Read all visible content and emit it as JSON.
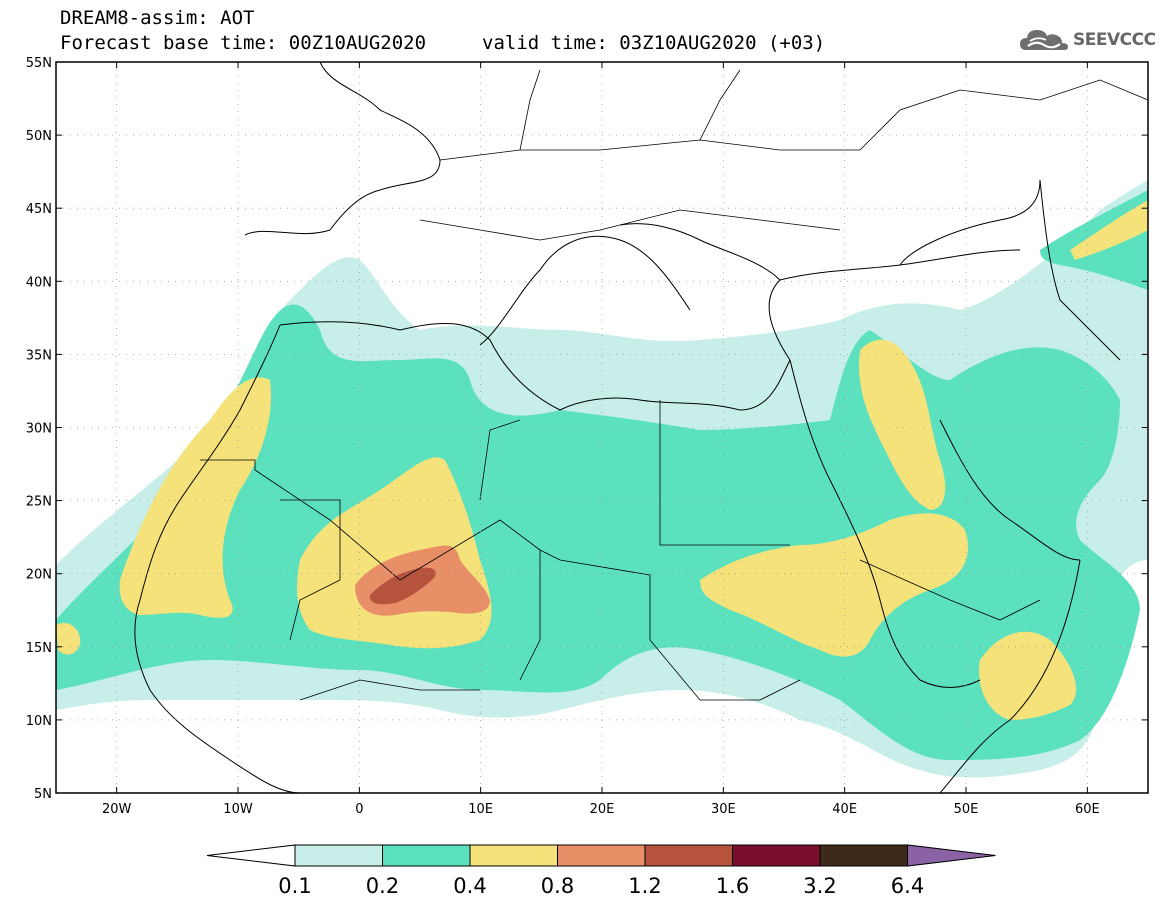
{
  "header": {
    "line1": "DREAM8-assim: AOT",
    "line2": "Forecast base time: 00Z10AUG2020",
    "valid": "valid time: 03Z10AUG2020 (+03)",
    "logo_text": "SEEVCCC",
    "logo_icon": "cloud-icon"
  },
  "map": {
    "projection": "lat-lon",
    "lon_range": [
      -25,
      65
    ],
    "lat_range": [
      5,
      55
    ],
    "lat_labels": [
      "55N",
      "50N",
      "45N",
      "40N",
      "35N",
      "30N",
      "25N",
      "20N",
      "15N",
      "10N",
      "5N"
    ],
    "lat_values": [
      55,
      50,
      45,
      40,
      35,
      30,
      25,
      20,
      15,
      10,
      5
    ],
    "lon_labels": [
      "20W",
      "10W",
      "0",
      "10E",
      "20E",
      "30E",
      "40E",
      "50E",
      "60E"
    ],
    "lon_values": [
      -20,
      -10,
      0,
      10,
      20,
      30,
      40,
      50,
      60
    ],
    "grid": "dotted",
    "ocean_color": "#ffffff",
    "boundary_color": "#000000"
  },
  "colorbar": {
    "labels": [
      "0.1",
      "0.2",
      "0.4",
      "0.8",
      "1.2",
      "1.6",
      "3.2",
      "6.4"
    ],
    "colors": [
      "#ffffff",
      "#c7eee8",
      "#5ce1be",
      "#f5e27a",
      "#e88f68",
      "#b5533d",
      "#7a0f2d",
      "#3d2a1a",
      "#8b63a5"
    ]
  }
}
